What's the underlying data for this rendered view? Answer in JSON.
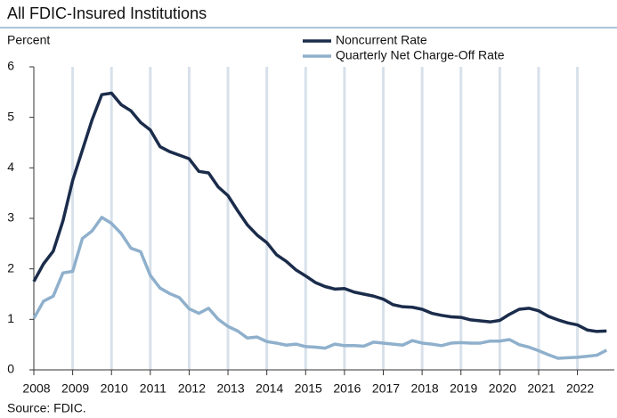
{
  "chart_data": {
    "type": "line",
    "title": "All FDIC-Insured Institutions",
    "y_label": "Percent",
    "source": "Source: FDIC.",
    "x": [
      2008,
      2008.25,
      2008.5,
      2008.75,
      2009,
      2009.25,
      2009.5,
      2009.75,
      2010,
      2010.25,
      2010.5,
      2010.75,
      2011,
      2011.25,
      2011.5,
      2011.75,
      2012,
      2012.25,
      2012.5,
      2012.75,
      2013,
      2013.25,
      2013.5,
      2013.75,
      2014,
      2014.25,
      2014.5,
      2014.75,
      2015,
      2015.25,
      2015.5,
      2015.75,
      2016,
      2016.25,
      2016.5,
      2016.75,
      2017,
      2017.25,
      2017.5,
      2017.75,
      2018,
      2018.25,
      2018.5,
      2018.75,
      2019,
      2019.25,
      2019.5,
      2019.75,
      2020,
      2020.25,
      2020.5,
      2020.75,
      2021,
      2021.25,
      2021.5,
      2021.75,
      2022,
      2022.25,
      2022.5,
      2022.75
    ],
    "series": [
      {
        "name": "Noncurrent Rate",
        "color": "#1b2c4b",
        "values": [
          1.75,
          2.1,
          2.35,
          2.95,
          3.75,
          4.35,
          4.95,
          5.45,
          5.48,
          5.25,
          5.13,
          4.9,
          4.75,
          4.42,
          4.32,
          4.25,
          4.18,
          3.93,
          3.9,
          3.62,
          3.45,
          3.15,
          2.87,
          2.67,
          2.52,
          2.28,
          2.15,
          1.98,
          1.86,
          1.73,
          1.65,
          1.6,
          1.61,
          1.54,
          1.5,
          1.46,
          1.4,
          1.29,
          1.25,
          1.24,
          1.2,
          1.12,
          1.08,
          1.05,
          1.04,
          0.99,
          0.97,
          0.95,
          0.98,
          1.1,
          1.2,
          1.22,
          1.17,
          1.06,
          0.99,
          0.93,
          0.89,
          0.79,
          0.76,
          0.77
        ]
      },
      {
        "name": "Quarterly Net Charge-Off Rate",
        "color": "#8fb0cc",
        "values": [
          1.02,
          1.36,
          1.46,
          1.92,
          1.95,
          2.6,
          2.75,
          3.02,
          2.9,
          2.7,
          2.41,
          2.34,
          1.87,
          1.62,
          1.51,
          1.43,
          1.21,
          1.12,
          1.22,
          1.0,
          0.86,
          0.77,
          0.63,
          0.65,
          0.56,
          0.53,
          0.49,
          0.51,
          0.46,
          0.45,
          0.43,
          0.51,
          0.48,
          0.48,
          0.47,
          0.55,
          0.53,
          0.51,
          0.49,
          0.58,
          0.53,
          0.51,
          0.48,
          0.53,
          0.54,
          0.53,
          0.53,
          0.57,
          0.57,
          0.6,
          0.5,
          0.45,
          0.38,
          0.3,
          0.23,
          0.24,
          0.25,
          0.27,
          0.29,
          0.39
        ]
      }
    ],
    "xlim": [
      2008,
      2022.95
    ],
    "xticks": [
      2008,
      2009,
      2010,
      2011,
      2012,
      2013,
      2014,
      2015,
      2016,
      2017,
      2018,
      2019,
      2020,
      2021,
      2022
    ],
    "ylim": [
      0,
      6
    ],
    "yticks": [
      0,
      1,
      2,
      3,
      4,
      5,
      6
    ],
    "grid": true,
    "grid_color": "#d8e1ea"
  }
}
